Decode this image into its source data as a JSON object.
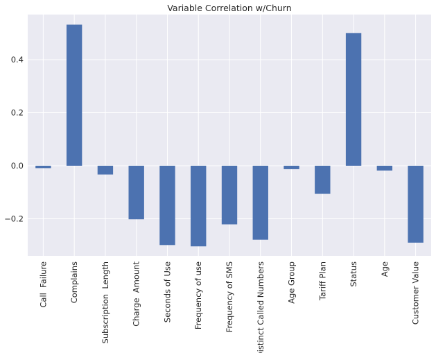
{
  "chart_data": {
    "type": "bar",
    "title": "Variable Correlation w/Churn",
    "xlabel": "",
    "ylabel": "",
    "categories": [
      "Call  Failure",
      "Complains",
      "Subscription  Length",
      "Charge  Amount",
      "Seconds of Use",
      "Frequency of use",
      "Frequency of SMS",
      "Distinct Called Numbers",
      "Age Group",
      "Tariff Plan",
      "Status",
      "Age",
      "Customer Value"
    ],
    "values": [
      -0.009,
      0.532,
      -0.033,
      -0.202,
      -0.299,
      -0.304,
      -0.221,
      -0.279,
      -0.013,
      -0.106,
      0.5,
      -0.018,
      -0.29
    ],
    "ylim": [
      -0.34,
      0.57
    ],
    "yticks": [
      -0.2,
      0.0,
      0.2,
      0.4
    ],
    "ytick_labels": [
      "−0.2",
      "0.0",
      "0.2",
      "0.4"
    ],
    "grid": true,
    "legend": "none",
    "colors": {
      "bar": "#4c72b0",
      "plot_background": "#eaeaf2",
      "grid": "#ffffff",
      "text": "#262626"
    }
  }
}
